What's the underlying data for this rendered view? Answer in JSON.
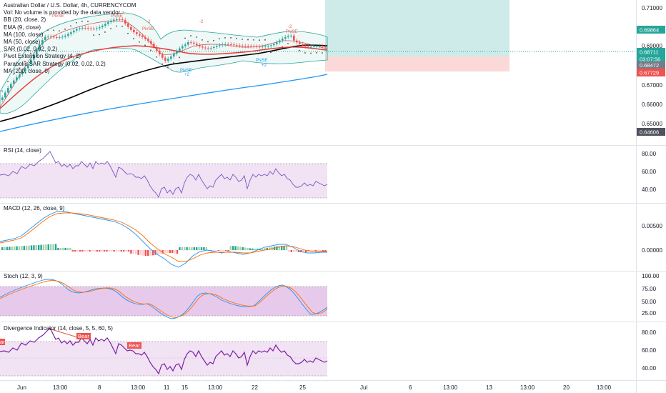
{
  "main_pane": {
    "title": "Australian Dollar / U.S. Dollar, 4h, CURRENCYCOM",
    "indicators": [
      "Vol: No volume is provided by the data vendor",
      "BB (20, close, 2)",
      "EMA (9, close)",
      "MA (100, close)",
      "MA (50, close)",
      "SAR (0.02, 0.02, 0.2)",
      "Pivot Extension Strategy (4, 2)",
      "Parabolic SAR Strategy (0.02, 0.02, 0.2)",
      "MA (200, close, 0)"
    ],
    "price_ticks": [
      "0.71000",
      "0.70000",
      "0.69000",
      "0.68000",
      "0.67000",
      "0.66000",
      "0.65000"
    ],
    "price_badges": [
      {
        "value": "0.69864",
        "color": "#26a69a"
      },
      {
        "value": "0.68711",
        "color": "#26a69a"
      },
      {
        "value": "03:07:56",
        "color": "#26a69a"
      },
      {
        "value": "0.68472",
        "color": "#787b86"
      },
      {
        "value": "0.67729",
        "color": "#ef5350"
      },
      {
        "value": "0.64606",
        "color": "#50535e"
      }
    ],
    "signal_labels": [
      "PivSE",
      "PivSE",
      "PivSE",
      "-2",
      "-2",
      "-2",
      "PivSE",
      "-2",
      "PivSE",
      "+2",
      "+2",
      "PivSE",
      "+2"
    ]
  },
  "panes": {
    "rsi": {
      "label": "RSI (14, close)",
      "ticks": [
        "80.00",
        "60.00",
        "40.00"
      ]
    },
    "macd": {
      "label": "MACD (12, 26, close, 9)",
      "ticks": [
        "0.00500",
        "0.00000"
      ]
    },
    "stoch": {
      "label": "Stoch (12, 3, 9)",
      "ticks": [
        "100.00",
        "75.00",
        "50.00",
        "25.00"
      ]
    },
    "divergence": {
      "label": "Divergence Indicator (14, close, 5, 5, 60, 5)",
      "ticks": [
        "80.00",
        "60.00",
        "40.00"
      ],
      "markers": [
        "Bear",
        "Bear",
        "ar"
      ]
    }
  },
  "time_axis": {
    "labels": [
      "Jun",
      "13:00",
      "8",
      "13:00",
      "11",
      "15",
      "13:00",
      "22",
      "25",
      "Jul",
      "6",
      "13:00",
      "13",
      "13:00",
      "20",
      "13:00"
    ]
  },
  "colors": {
    "up_candle": "#26a69a",
    "down_candle": "#ef5350",
    "ma200": "#2196f3",
    "ma100": "#000000",
    "ma50": "#e53935",
    "rsi_line": "#7e57c2",
    "band_fill": "#e1bee7",
    "macd_line": "#2196f3",
    "signal_line": "#ff6d00"
  }
}
